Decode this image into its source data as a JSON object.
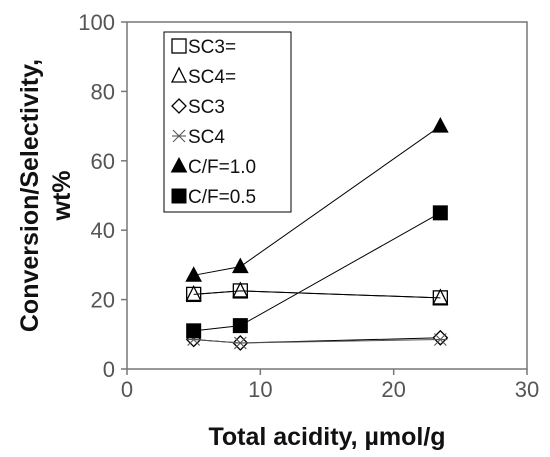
{
  "chart_data": {
    "type": "line",
    "title": "",
    "xlabel": "Total acidity, µmol/g",
    "ylabel": [
      "Conversion/Selectivity,",
      "wt%"
    ],
    "xlim": [
      0,
      30
    ],
    "ylim": [
      0,
      100
    ],
    "xticks": [
      "0",
      "10",
      "20",
      "30"
    ],
    "yticks": [
      "0",
      "20",
      "40",
      "60",
      "80",
      "100"
    ],
    "grid": false,
    "legend_position": "top-left",
    "x": [
      5,
      8.5,
      23.5
    ],
    "series": [
      {
        "name": "SC3=",
        "marker": "open-square",
        "values": [
          21.5,
          22.5,
          20.5
        ]
      },
      {
        "name": "SC4=",
        "marker": "open-triangle",
        "values": [
          21.5,
          22.5,
          20.5
        ]
      },
      {
        "name": "SC3",
        "marker": "open-diamond",
        "values": [
          8.5,
          7.5,
          9
        ]
      },
      {
        "name": "SC4",
        "marker": "star",
        "values": [
          8.5,
          7.5,
          8.5
        ]
      },
      {
        "name": "C/F=1.0",
        "marker": "filled-triangle",
        "values": [
          27,
          29.5,
          70
        ]
      },
      {
        "name": "C/F=0.5",
        "marker": "filled-square",
        "values": [
          11,
          12.5,
          45
        ]
      }
    ]
  }
}
